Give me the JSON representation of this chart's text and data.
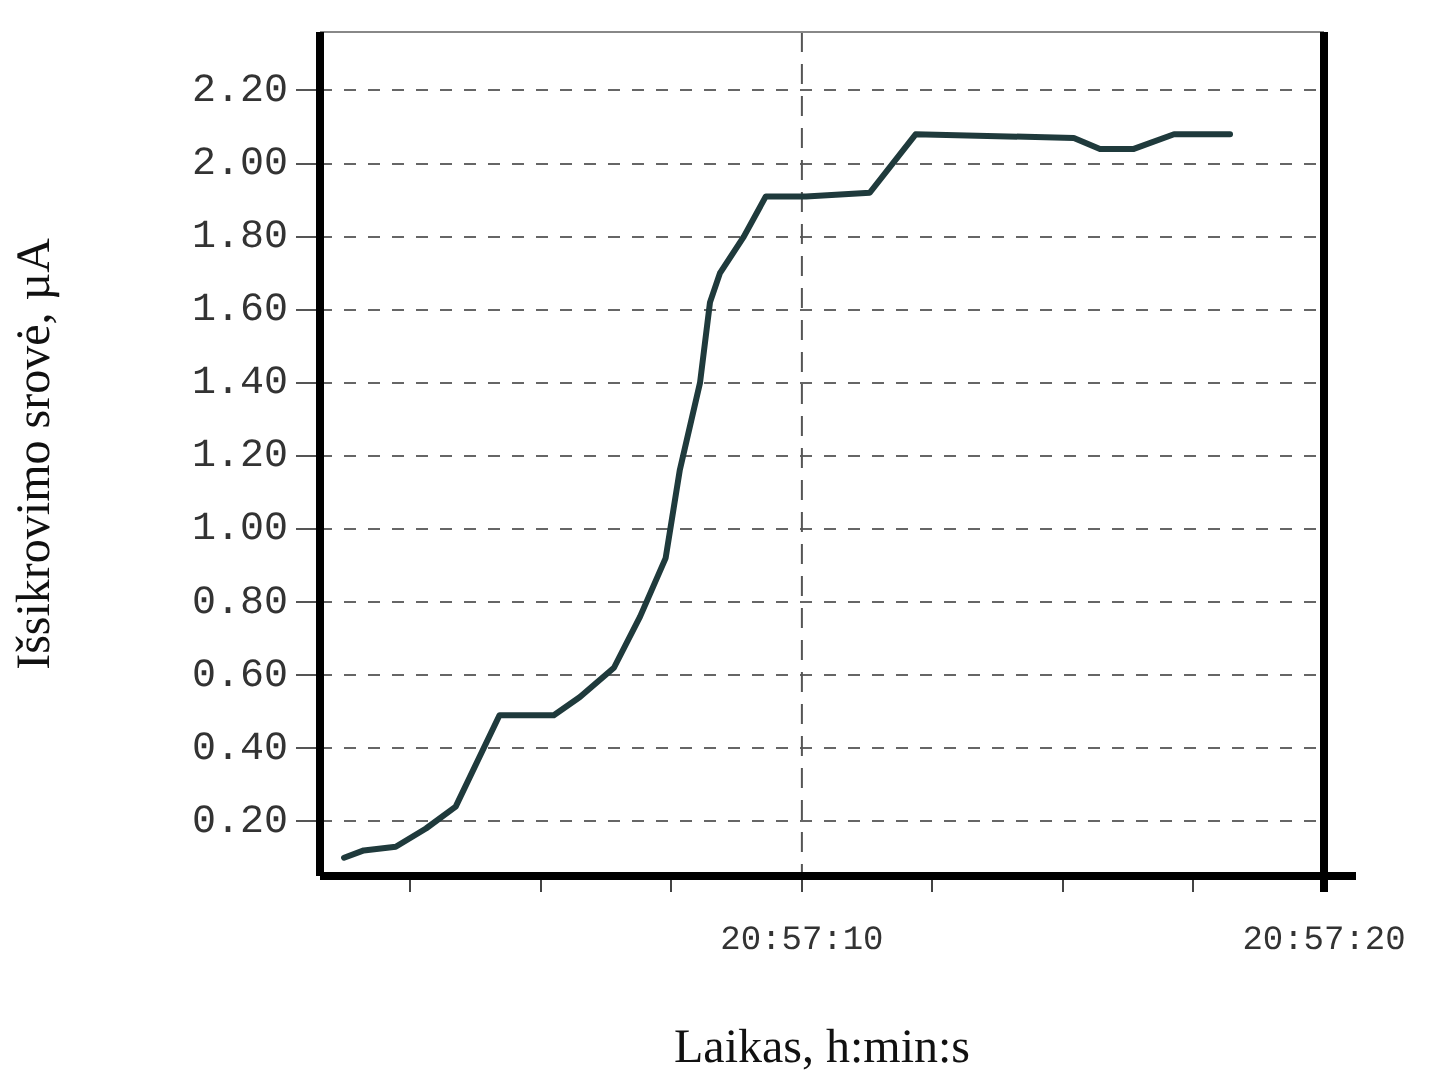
{
  "chart_data": {
    "type": "line",
    "xlabel": "Laikas, h:min:s",
    "ylabel": "Išsikrovimo srovė, µA",
    "x": [
      20.950342,
      20.950447,
      20.950617,
      20.950778,
      20.950936,
      20.951169,
      20.951458,
      20.951597,
      20.951778,
      20.951917,
      20.952053,
      20.952128,
      20.952236,
      20.952289,
      20.952342,
      20.952469,
      20.952586,
      20.9528,
      20.953139,
      20.953383,
      20.954225,
      20.954364,
      20.954544,
      20.954758,
      20.955056
    ],
    "series": [
      {
        "color": "#1f3a3c",
        "values": [
          0.1,
          0.12,
          0.13,
          0.18,
          0.24,
          0.49,
          0.49,
          0.54,
          0.62,
          0.76,
          0.92,
          1.16,
          1.4,
          1.62,
          1.7,
          1.8,
          1.91,
          1.91,
          1.92,
          2.08,
          2.07,
          2.04,
          2.04,
          2.08,
          2.08
        ]
      }
    ],
    "xlim": [
      20.950214,
      20.955556
    ],
    "ylim": [
      0.05,
      2.36
    ],
    "xticks": [
      {
        "value": 20.950694,
        "label": null
      },
      {
        "value": 20.951389,
        "label": null
      },
      {
        "value": 20.952083,
        "label": null
      },
      {
        "value": 20.952778,
        "label": "20:57:10"
      },
      {
        "value": 20.953472,
        "label": null
      },
      {
        "value": 20.954167,
        "label": null
      },
      {
        "value": 20.954861,
        "label": null
      },
      {
        "value": 20.955556,
        "label": "20:57:20"
      }
    ],
    "yticks": [
      {
        "value": 0.2,
        "label": "0.20"
      },
      {
        "value": 0.4,
        "label": "0.40"
      },
      {
        "value": 0.6,
        "label": "0.60"
      },
      {
        "value": 0.8,
        "label": "0.80"
      },
      {
        "value": 1.0,
        "label": "1.00"
      },
      {
        "value": 1.2,
        "label": "1.20"
      },
      {
        "value": 1.4,
        "label": "1.40"
      },
      {
        "value": 1.6,
        "label": "1.60"
      },
      {
        "value": 1.8,
        "label": "1.80"
      },
      {
        "value": 2.0,
        "label": "2.00"
      },
      {
        "value": 2.2,
        "label": "2.20"
      }
    ],
    "grid": "y",
    "ref_lines": [
      {
        "axis": "x",
        "value": 20.952778,
        "line_style": "dashed"
      }
    ],
    "marker": "none",
    "line_style": "solid"
  }
}
